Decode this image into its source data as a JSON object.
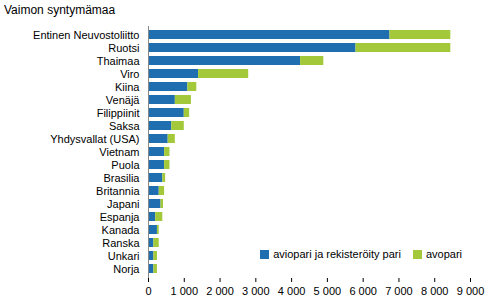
{
  "chart_data": {
    "type": "bar",
    "orientation": "horizontal",
    "stacked": true,
    "title": "Vaimon syntymämaa",
    "categories": [
      "Entinen Neuvostoliitto",
      "Ruotsi",
      "Thaimaa",
      "Viro",
      "Kiina",
      "Venäjä",
      "Filippiinit",
      "Saksa",
      "Yhdysvallat (USA)",
      "Vietnam",
      "Puola",
      "Brasilia",
      "Britannia",
      "Japani",
      "Espanja",
      "Kanada",
      "Ranska",
      "Unkari",
      "Norja"
    ],
    "series": [
      {
        "name": "aviopari ja rekisteröity pari",
        "color": "#1f6fb0",
        "values": [
          6750,
          5800,
          4250,
          1400,
          1100,
          750,
          1000,
          650,
          550,
          450,
          450,
          400,
          300,
          350,
          200,
          250,
          150,
          150,
          150
        ]
      },
      {
        "name": "avopari",
        "color": "#a3c93a",
        "values": [
          1700,
          2650,
          650,
          1400,
          250,
          450,
          150,
          350,
          200,
          150,
          150,
          80,
          150,
          70,
          200,
          50,
          150,
          100,
          100
        ]
      }
    ],
    "xlim": [
      0,
      9000
    ],
    "xticks": [
      0,
      {
        "value": 1000,
        "label": "1 000"
      },
      {
        "value": 2000,
        "label": "2 000"
      },
      {
        "value": 3000,
        "label": "3 000"
      },
      {
        "value": 4000,
        "label": "4 000"
      },
      {
        "value": 5000,
        "label": "5 000"
      },
      {
        "value": 6000,
        "label": "6 000"
      },
      {
        "value": 7000,
        "label": "7 000"
      },
      {
        "value": 8000,
        "label": "8 000"
      },
      {
        "value": 9000,
        "label": "9 000"
      }
    ],
    "grid": false,
    "legend": "bottom-right"
  }
}
